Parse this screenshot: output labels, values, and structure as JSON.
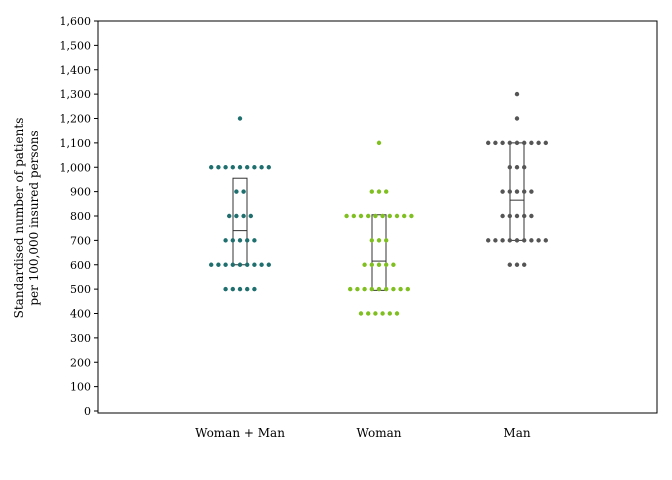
{
  "chart_data": {
    "type": "scatter",
    "subtype": "dot-plot-with-box",
    "ylabel_lines": [
      "Standardised number of patients",
      "per 100,000 insured persons"
    ],
    "ylim": [
      0,
      1600
    ],
    "yticks": [
      0,
      100,
      200,
      300,
      400,
      500,
      600,
      700,
      800,
      900,
      1000,
      1100,
      1200,
      1300,
      1400,
      1500,
      1600
    ],
    "ytick_labels": [
      "0",
      "100",
      "200",
      "300",
      "400",
      "500",
      "600",
      "700",
      "800",
      "900",
      "1,000",
      "1,100",
      "1,200",
      "1,300",
      "1,400",
      "1,500",
      "1,600"
    ],
    "grid": false,
    "categories": [
      "Woman + Man",
      "Woman",
      "Man"
    ],
    "series": [
      {
        "color": "#1f6f6f",
        "points": [
          {
            "y": 1200,
            "count": 1
          },
          {
            "y": 1000,
            "count": 9
          },
          {
            "y": 900,
            "count": 2
          },
          {
            "y": 800,
            "count": 4
          },
          {
            "y": 700,
            "count": 5
          },
          {
            "y": 600,
            "count": 9
          },
          {
            "y": 500,
            "count": 5
          }
        ],
        "box": {
          "q1": 600,
          "median": 740,
          "q3": 955
        }
      },
      {
        "color": "#7fbf1f",
        "points": [
          {
            "y": 1100,
            "count": 1
          },
          {
            "y": 900,
            "count": 3
          },
          {
            "y": 800,
            "count": 10
          },
          {
            "y": 700,
            "count": 3
          },
          {
            "y": 600,
            "count": 5
          },
          {
            "y": 500,
            "count": 9
          },
          {
            "y": 400,
            "count": 6
          }
        ],
        "box": {
          "q1": 495,
          "median": 615,
          "q3": 805
        }
      },
      {
        "color": "#555555",
        "points": [
          {
            "y": 1300,
            "count": 1
          },
          {
            "y": 1200,
            "count": 1
          },
          {
            "y": 1100,
            "count": 9
          },
          {
            "y": 1000,
            "count": 3
          },
          {
            "y": 900,
            "count": 5
          },
          {
            "y": 800,
            "count": 5
          },
          {
            "y": 700,
            "count": 9
          },
          {
            "y": 600,
            "count": 3
          }
        ],
        "box": {
          "q1": 700,
          "median": 865,
          "q3": 1100
        }
      }
    ]
  }
}
